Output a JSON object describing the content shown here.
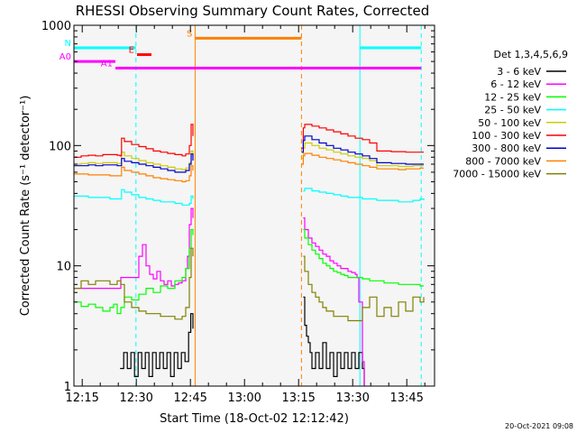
{
  "chart_data": {
    "type": "line",
    "title": "RHESSI Observing Summary Count Rates, Corrected",
    "xlabel": "Start Time (18-Oct-02 12:12:42)",
    "ylabel": "Corrected Count Rate (s⁻¹ detector⁻¹)",
    "y_scale": "log",
    "ylim": [
      1,
      1000
    ],
    "xlim_minutes": [
      0,
      100
    ],
    "y_ticks": [
      "1",
      "10",
      "100",
      "1000"
    ],
    "x_ticks": [
      {
        "label": "12:15",
        "minute": 2.3
      },
      {
        "label": "12:30",
        "minute": 17.3
      },
      {
        "label": "12:45",
        "minute": 32.3
      },
      {
        "label": "13:00",
        "minute": 47.3
      },
      {
        "label": "13:15",
        "minute": 62.3
      },
      {
        "label": "13:30",
        "minute": 77.3
      },
      {
        "label": "13:45",
        "minute": 92.3
      }
    ],
    "legend_title": "Det 1,3,4,5,6,9",
    "legend_position": "right",
    "gaps_minutes": [
      [
        33.6,
        63.1
      ]
    ],
    "series": [
      {
        "name": "3 - 6 keV",
        "color": "#000000",
        "segments": [
          {
            "x": [
              12.8,
              13.8,
              14.8,
              15.8,
              16.8,
              17.8,
              18.8,
              19.8,
              20.8,
              21.8,
              22.8,
              23.8,
              24.8,
              25.8,
              26.8,
              27.8,
              28.8,
              29.8,
              30.8,
              31.8,
              32.4,
              33.0
            ],
            "y": [
              1.4,
              1.9,
              1.4,
              1.9,
              1.2,
              1.9,
              1.4,
              1.9,
              1.2,
              1.9,
              1.4,
              1.9,
              1.4,
              1.9,
              1.2,
              1.9,
              1.4,
              1.9,
              1.6,
              2.8,
              4.0,
              3.0
            ]
          },
          {
            "x": [
              63.6,
              64.0,
              64.5,
              65.0,
              65.5,
              66.0,
              67.0,
              68.0,
              69.0,
              70.0,
              71.0,
              72.0,
              73.0,
              74.0,
              75.0,
              76.0,
              77.0,
              78.0,
              79.0,
              80.0,
              80.5
            ],
            "y": [
              5.5,
              3.2,
              2.6,
              2.3,
              1.9,
              1.4,
              1.9,
              1.4,
              2.3,
              1.4,
              1.9,
              1.2,
              1.9,
              1.4,
              1.9,
              1.4,
              1.9,
              1.4,
              1.9,
              1.4,
              1.0
            ]
          }
        ]
      },
      {
        "name": "6 - 12 keV",
        "color": "#ff00ff",
        "segments": [
          {
            "x": [
              0,
              5,
              10,
              12.8,
              13.0,
              14,
              16,
              18,
              19,
              20,
              21,
              22,
              23,
              24,
              25,
              26,
              27,
              28,
              29,
              30,
              31,
              31.5,
              32,
              32.5,
              33.0
            ],
            "y": [
              6.5,
              6.5,
              6.5,
              6.5,
              8.0,
              8.0,
              8.0,
              12.0,
              15.0,
              10.0,
              8.5,
              7.8,
              9.0,
              7.5,
              7.0,
              7.5,
              6.8,
              7.0,
              7.2,
              7.5,
              9.5,
              12.0,
              22.0,
              30.0,
              25.0
            ]
          },
          {
            "x": [
              63.6,
              64.0,
              65,
              66,
              67,
              68,
              69,
              70,
              71,
              72,
              73,
              74,
              75,
              76,
              77,
              78,
              78.5,
              79,
              80,
              80.5
            ],
            "y": [
              25.0,
              20.0,
              17.0,
              15.5,
              14.5,
              13.5,
              12.5,
              12.0,
              11.0,
              10.5,
              10.0,
              9.5,
              9.5,
              9.0,
              8.8,
              8.5,
              8.0,
              5.0,
              1.6,
              1.0
            ]
          }
        ]
      },
      {
        "name": "12 - 25 keV",
        "color": "#00ff00",
        "segments": [
          {
            "x": [
              0,
              2,
              4,
              6,
              8,
              10,
              11,
              12,
              13,
              14,
              16,
              18,
              20,
              22,
              24,
              26,
              28,
              30,
              31,
              32,
              32.5,
              33.0
            ],
            "y": [
              5.0,
              4.6,
              4.8,
              4.5,
              4.2,
              4.5,
              4.8,
              4.0,
              4.5,
              5.5,
              5.2,
              5.8,
              6.5,
              6.0,
              6.8,
              6.5,
              7.5,
              8.0,
              9.5,
              14.0,
              20.0,
              18.0
            ]
          },
          {
            "x": [
              63.6,
              64.0,
              65,
              66,
              67,
              68,
              69,
              70,
              71,
              72,
              73,
              74,
              75,
              76,
              77,
              78,
              80,
              82,
              84,
              86,
              88,
              90,
              92,
              94,
              96,
              97
            ],
            "y": [
              20.0,
              17.0,
              15.0,
              13.5,
              12.5,
              11.5,
              10.5,
              10.0,
              9.5,
              9.0,
              8.8,
              8.5,
              8.3,
              8.0,
              8.0,
              8.0,
              7.8,
              7.5,
              7.5,
              7.2,
              7.2,
              7.0,
              7.0,
              7.0,
              6.8,
              6.8
            ]
          }
        ]
      },
      {
        "name": "25 - 50 keV",
        "color": "#00ffff",
        "segments": [
          {
            "x": [
              0,
              2,
              4,
              6,
              8,
              10,
              12,
              12.8,
              13.2,
              14,
              16,
              18,
              20,
              22,
              24,
              26,
              28,
              30,
              31,
              32,
              32.5,
              33.0
            ],
            "y": [
              38,
              38,
              37,
              37,
              37,
              36,
              36,
              36,
              43,
              41,
              39,
              37,
              36,
              35,
              34,
              34,
              33,
              32,
              32,
              33,
              38,
              36
            ]
          },
          {
            "x": [
              63.6,
              64.0,
              66,
              68,
              70,
              72,
              74,
              76,
              78,
              80,
              82,
              84,
              86,
              88,
              90,
              92,
              94,
              96,
              97
            ],
            "y": [
              42,
              44,
              42,
              41,
              40,
              39,
              38,
              37,
              37,
              36,
              36,
              35,
              35,
              35,
              34,
              34,
              35,
              36,
              35
            ]
          }
        ]
      },
      {
        "name": "50 - 100 keV",
        "color": "#cccc00",
        "segments": [
          {
            "x": [
              0,
              2,
              4,
              6,
              8,
              10,
              12,
              12.8,
              13.2,
              14,
              16,
              18,
              20,
              22,
              24,
              26,
              28,
              30,
              31,
              32,
              32.5,
              33.0
            ],
            "y": [
              70,
              71,
              72,
              71,
              72,
              72,
              71,
              71,
              88,
              82,
              78,
              75,
              72,
              70,
              68,
              66,
              64,
              63,
              65,
              72,
              90,
              80
            ]
          },
          {
            "x": [
              63.1,
              63.6,
              64.0,
              66,
              68,
              70,
              72,
              74,
              76,
              78,
              80,
              82,
              84,
              86,
              88,
              90,
              92,
              94,
              96,
              97
            ],
            "y": [
              78,
              95,
              105,
              100,
              95,
              92,
              88,
              85,
              82,
              80,
              78,
              75,
              68,
              68,
              68,
              67,
              67,
              68,
              68,
              68
            ]
          }
        ]
      },
      {
        "name": "100 - 300 keV",
        "color": "#ff0000",
        "segments": [
          {
            "x": [
              0,
              2,
              4,
              6,
              8,
              10,
              12,
              12.8,
              13.2,
              14,
              16,
              18,
              20,
              22,
              24,
              26,
              28,
              30,
              31,
              32,
              32.5,
              33.0
            ],
            "y": [
              80,
              82,
              83,
              82,
              84,
              84,
              83,
              82,
              115,
              108,
              102,
              98,
              94,
              90,
              88,
              86,
              84,
              82,
              85,
              100,
              150,
              120
            ]
          },
          {
            "x": [
              63.1,
              63.6,
              64.0,
              66,
              68,
              70,
              72,
              74,
              76,
              78,
              80,
              82,
              84,
              86,
              88,
              90,
              92,
              94,
              96,
              97
            ],
            "y": [
              95,
              140,
              150,
              145,
              140,
              135,
              130,
              125,
              120,
              115,
              112,
              105,
              90,
              90,
              89,
              89,
              88,
              88,
              88,
              88
            ]
          }
        ]
      },
      {
        "name": "300 - 800 keV",
        "color": "#0000cc",
        "segments": [
          {
            "x": [
              0,
              2,
              4,
              6,
              8,
              10,
              12,
              12.8,
              13.2,
              14,
              16,
              18,
              20,
              22,
              24,
              26,
              28,
              30,
              31,
              32,
              32.5,
              33.0
            ],
            "y": [
              68,
              68,
              69,
              68,
              69,
              69,
              68,
              68,
              78,
              74,
              72,
              70,
              68,
              66,
              64,
              62,
              60,
              60,
              62,
              70,
              85,
              75
            ]
          },
          {
            "x": [
              63.1,
              63.6,
              64.0,
              66,
              68,
              70,
              72,
              74,
              76,
              78,
              80,
              82,
              84,
              86,
              88,
              90,
              92,
              94,
              96,
              97
            ],
            "y": [
              88,
              110,
              120,
              112,
              105,
              100,
              95,
              92,
              88,
              85,
              82,
              78,
              72,
              72,
              71,
              71,
              70,
              70,
              70,
              70
            ]
          }
        ]
      },
      {
        "name": "800 - 7000 keV",
        "color": "#ff8000",
        "segments": [
          {
            "x": [
              0,
              2,
              4,
              6,
              8,
              10,
              12,
              12.8,
              13.2,
              14,
              16,
              18,
              20,
              22,
              24,
              26,
              28,
              30,
              31,
              32,
              32.5,
              33.0
            ],
            "y": [
              58,
              58,
              57,
              57,
              57,
              56,
              56,
              56,
              66,
              62,
              60,
              58,
              56,
              54,
              53,
              52,
              51,
              50,
              51,
              56,
              68,
              62
            ]
          },
          {
            "x": [
              63.1,
              63.6,
              64.0,
              66,
              68,
              70,
              72,
              74,
              76,
              78,
              80,
              82,
              84,
              86,
              88,
              90,
              92,
              94,
              96,
              97
            ],
            "y": [
              70,
              82,
              86,
              83,
              80,
              78,
              76,
              74,
              72,
              70,
              68,
              66,
              64,
              64,
              64,
              63,
              64,
              64,
              65,
              65
            ]
          }
        ]
      },
      {
        "name": "7000 - 15000 keV",
        "color": "#808000",
        "segments": [
          {
            "x": [
              0,
              2,
              4,
              6,
              8,
              10,
              12,
              13,
              14,
              16,
              18,
              20,
              22,
              24,
              26,
              28,
              30,
              31,
              32,
              32.5,
              33.0
            ],
            "y": [
              6.5,
              7.5,
              7.0,
              7.5,
              7.5,
              7.0,
              7.5,
              7.0,
              5.0,
              4.5,
              4.2,
              4.0,
              4.0,
              3.8,
              3.8,
              3.6,
              3.8,
              4.5,
              8.0,
              14.0,
              12.0
            ]
          },
          {
            "x": [
              63.6,
              64.0,
              65,
              66,
              67,
              68,
              69,
              70,
              72,
              74,
              76,
              78,
              80,
              82,
              84,
              86,
              88,
              90,
              92,
              94,
              96,
              97
            ],
            "y": [
              12.0,
              9.0,
              7.0,
              6.0,
              5.5,
              5.0,
              4.5,
              4.2,
              3.8,
              3.8,
              3.5,
              3.5,
              4.5,
              5.5,
              3.8,
              4.5,
              3.8,
              5.0,
              4.2,
              5.5,
              5.0,
              5.5
            ]
          }
        ]
      }
    ],
    "vertical_lines": [
      {
        "minute": 17.2,
        "color": "#00ffff",
        "style": "dashed"
      },
      {
        "minute": 33.6,
        "color": "#ff8000",
        "style": "solid"
      },
      {
        "minute": 63.1,
        "color": "#ff8000",
        "style": "dashed"
      },
      {
        "minute": 79.3,
        "color": "#00ffff",
        "style": "solid"
      },
      {
        "minute": 96.3,
        "color": "#00ffff",
        "style": "dashed"
      }
    ],
    "flag_bars": [
      {
        "label": "N",
        "color": "#00ffff",
        "x_start": 0,
        "x_end": 17.2,
        "y": 650
      },
      {
        "label": "",
        "color": "#00ffff",
        "x_start": 79.3,
        "x_end": 96.3,
        "y": 650
      },
      {
        "label": "S",
        "color": "#ff8000",
        "x_start": 33.6,
        "x_end": 63.1,
        "y": 780
      },
      {
        "label": "E",
        "color": "#ff0000",
        "x_start": 17.5,
        "x_end": 21.5,
        "y": 570
      },
      {
        "label": "A0",
        "color": "#ff00ff",
        "x_start": 0,
        "x_end": 11.5,
        "y": 500
      },
      {
        "label": "A1",
        "color": "#ff00ff",
        "x_start": 11.5,
        "x_end": 96.3,
        "y": 440
      }
    ]
  },
  "footer": {
    "timestamp": "20-Oct-2021 09:08"
  }
}
